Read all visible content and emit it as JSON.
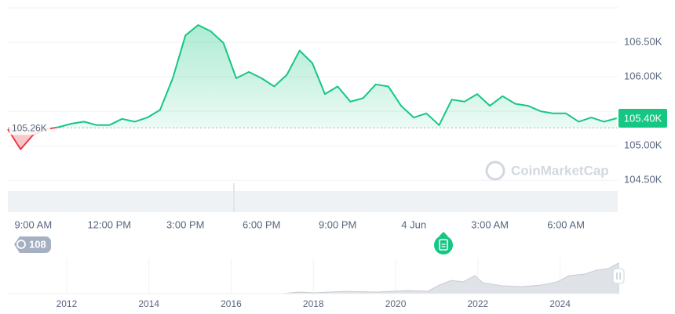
{
  "chart_data": {
    "type": "line",
    "color": "#16c784",
    "negative_color": "#ea3943",
    "x": [
      8.0,
      8.5,
      9.0,
      9.5,
      10.0,
      10.5,
      11.0,
      11.5,
      12.0,
      12.5,
      13.0,
      13.5,
      14.0,
      14.5,
      15.0,
      15.5,
      16.0,
      16.5,
      17.0,
      17.5,
      18.0,
      18.5,
      19.0,
      19.5,
      20.0,
      20.5,
      21.0,
      21.5,
      22.0,
      22.5,
      23.0,
      23.5,
      24.0,
      24.5,
      25.0,
      25.5,
      26.0,
      26.5,
      27.0,
      27.5,
      28.0,
      28.5,
      29.0,
      29.5,
      30.0,
      30.5,
      31.0,
      31.5,
      32.0
    ],
    "values": [
      105240,
      104950,
      105160,
      105240,
      105270,
      105320,
      105350,
      105300,
      105300,
      105390,
      105350,
      105410,
      105520,
      105980,
      106600,
      106750,
      106660,
      106490,
      105980,
      106070,
      105980,
      105860,
      106030,
      106380,
      106200,
      105750,
      105860,
      105640,
      105690,
      105890,
      105860,
      105580,
      105410,
      105470,
      105300,
      105670,
      105640,
      105750,
      105580,
      105720,
      105610,
      105580,
      105500,
      105470,
      105470,
      105350,
      105410,
      105350,
      105400
    ],
    "xlim": [
      8.0,
      32.07
    ],
    "xticks": [
      {
        "value": 9,
        "label": "9:00 AM"
      },
      {
        "value": 12,
        "label": "12:00 PM"
      },
      {
        "value": 15,
        "label": "3:00 PM"
      },
      {
        "value": 18,
        "label": "6:00 PM"
      },
      {
        "value": 21,
        "label": "9:00 PM"
      },
      {
        "value": 24,
        "label": "4 Jun"
      },
      {
        "value": 27,
        "label": "3:00 AM"
      },
      {
        "value": 30,
        "label": "6:00 AM"
      }
    ],
    "ylim": [
      104480,
      107000
    ],
    "yticks": [
      {
        "value": 104500,
        "label": "104.50K"
      },
      {
        "value": 105000,
        "label": "105.00K"
      },
      {
        "value": 105500,
        "label": ""
      },
      {
        "value": 106000,
        "label": "106.00K"
      },
      {
        "value": 106500,
        "label": "106.50K"
      }
    ],
    "baseline": {
      "value": 105260,
      "label": "105.26K"
    },
    "current": {
      "value": 105400,
      "label": "105.40K"
    },
    "watermark": "CoinMarketCap",
    "badge": "108",
    "grid": true,
    "overview": {
      "xlim": [
        2010.57,
        2025.42
      ],
      "xticks": [
        2012,
        2014,
        2016,
        2018,
        2020,
        2022,
        2024
      ]
    }
  }
}
